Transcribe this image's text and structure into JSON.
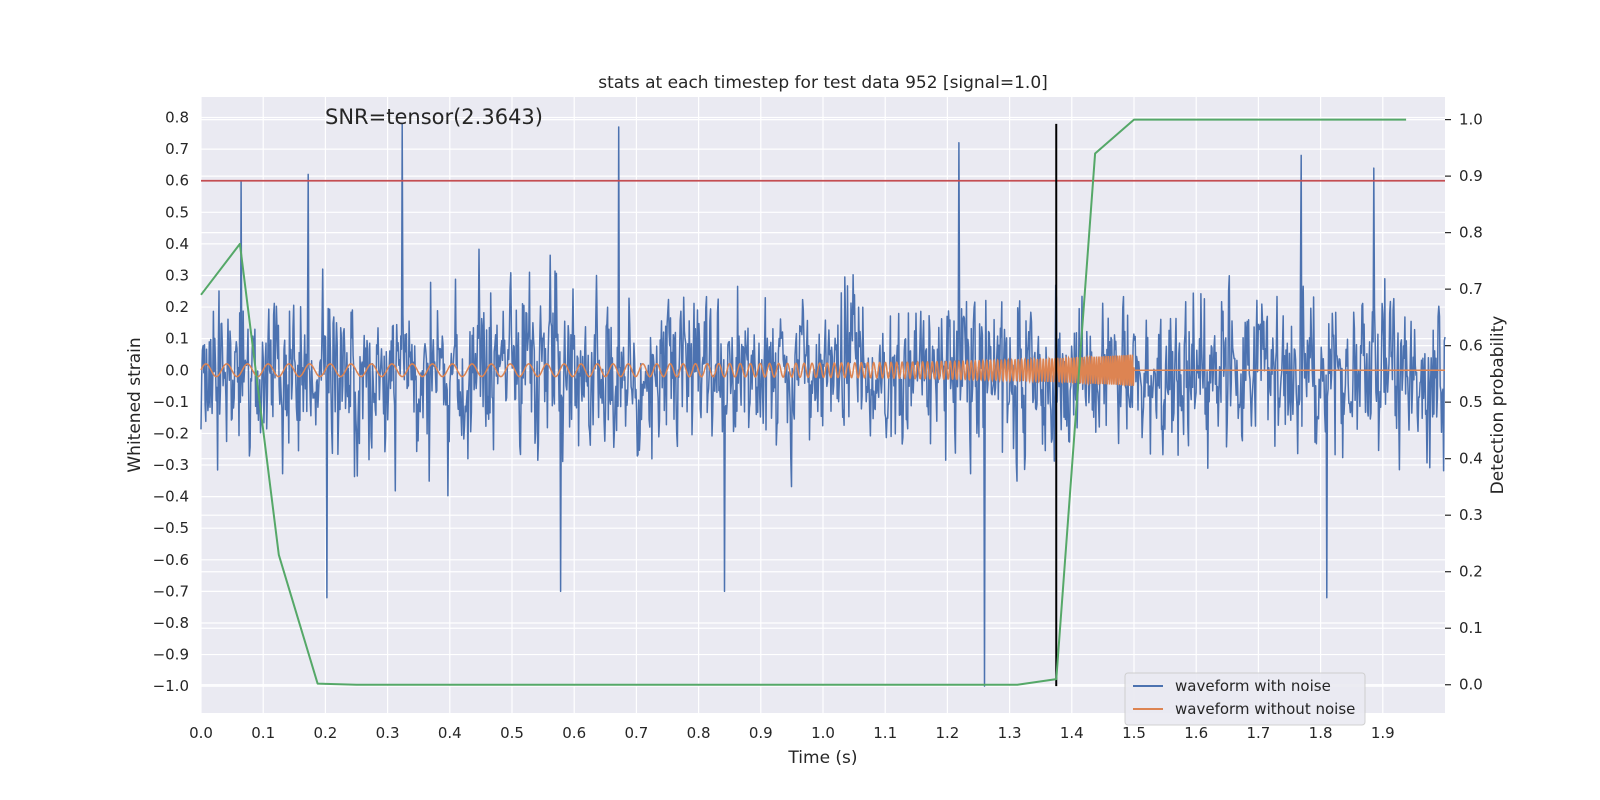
{
  "chart_data": {
    "type": "line",
    "title": "stats at each timestep for test data 952 [signal=1.0]",
    "xlabel": "Time (s)",
    "ylabel": "Whitened strain",
    "y2label": "Detection probability",
    "annotation": "SNR=tensor(2.3643)",
    "xlim": [
      0.0,
      2.0
    ],
    "ylim": [
      -1.085,
      0.865
    ],
    "y2lim": [
      -0.05,
      1.04
    ],
    "x_ticks": [
      0.0,
      0.1,
      0.2,
      0.3,
      0.4,
      0.5,
      0.6,
      0.7,
      0.8,
      0.9,
      1.0,
      1.1,
      1.2,
      1.3,
      1.4,
      1.5,
      1.6,
      1.7,
      1.8,
      1.9
    ],
    "y_ticks": [
      0.8,
      0.7,
      0.6,
      0.5,
      0.4,
      0.3,
      0.2,
      0.1,
      0.0,
      -0.1,
      -0.2,
      -0.3,
      -0.4,
      -0.5,
      -0.6,
      -0.7,
      -0.8,
      -0.9,
      -1.0
    ],
    "y2_ticks": [
      1.0,
      0.9,
      0.8,
      0.7,
      0.6,
      0.5,
      0.4,
      0.3,
      0.2,
      0.1,
      0.0
    ],
    "grid": true,
    "legend_position": "bottom-right",
    "threshold_line": {
      "y": 0.6,
      "color": "#c44e52"
    },
    "vertical_line": {
      "x": 1.375,
      "y_start": -1.0,
      "y_end": 0.78,
      "color": "#000000"
    },
    "series": [
      {
        "name": "waveform with noise",
        "color": "#4c72b0",
        "kind": "noise",
        "x_range": [
          0.0,
          2.0
        ],
        "approx_std": 0.27,
        "peaks": [
          {
            "x": 0.065,
            "y": 0.6
          },
          {
            "x": 0.172,
            "y": 0.62
          },
          {
            "x": 0.323,
            "y": 0.78
          },
          {
            "x": 0.672,
            "y": 0.77
          },
          {
            "x": 1.219,
            "y": 0.72
          },
          {
            "x": 1.769,
            "y": 0.68
          },
          {
            "x": 1.885,
            "y": 0.64
          }
        ],
        "troughs": [
          {
            "x": 0.202,
            "y": -0.72
          },
          {
            "x": 0.578,
            "y": -0.7
          },
          {
            "x": 0.842,
            "y": -0.7
          },
          {
            "x": 1.26,
            "y": -1.0
          },
          {
            "x": 1.81,
            "y": -0.72
          }
        ]
      },
      {
        "name": "waveform without noise",
        "color": "#dd8452",
        "kind": "chirp",
        "x_range": [
          0.0,
          2.0
        ],
        "chirp_end": 1.5,
        "amplitude_start": 0.02,
        "amplitude_end": 0.05,
        "freq_start_hz": 30,
        "freq_end_hz": 300
      },
      {
        "color": "#55a868",
        "axis": "right",
        "kind": "probability",
        "x": [
          0.0,
          0.0625,
          0.125,
          0.1875,
          0.25,
          0.3125,
          1.3125,
          1.375,
          1.4375,
          1.5,
          1.5625,
          1.9375
        ],
        "values": [
          0.69,
          0.78,
          0.23,
          0.002,
          0.0,
          0.0,
          0.0,
          0.01,
          0.94,
          1.0,
          1.0,
          1.0
        ]
      }
    ]
  }
}
